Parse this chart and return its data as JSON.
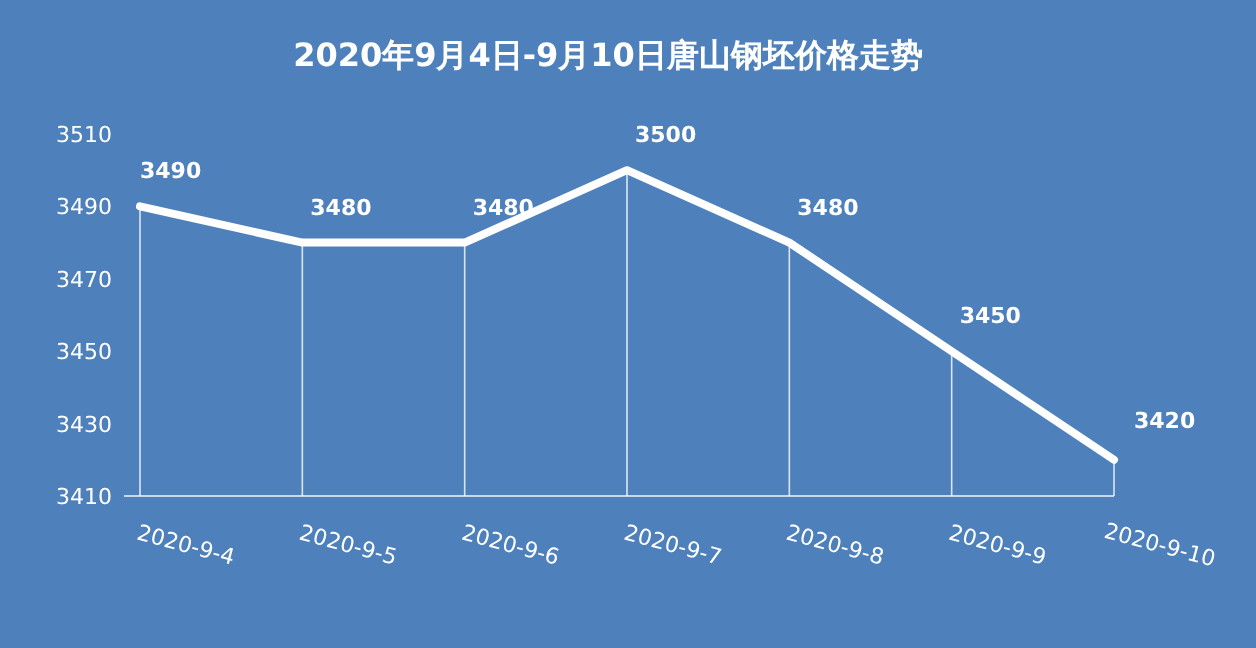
{
  "chart_data": {
    "type": "line",
    "title": "2020年9月4日-9月10日唐山钢坯价格走势",
    "categories": [
      "2020-9-4",
      "2020-9-5",
      "2020-9-6",
      "2020-9-7",
      "2020-9-8",
      "2020-9-9",
      "2020-9-10"
    ],
    "series": [
      {
        "color": "#ffffff",
        "values": [
          3490,
          3480,
          3480,
          3500,
          3480,
          3450,
          3420
        ]
      }
    ],
    "ylim": [
      3410,
      3510
    ],
    "yticks": [
      3410,
      3430,
      3450,
      3470,
      3490,
      3510
    ],
    "data_labels": true,
    "grid": "x",
    "marker": "none",
    "line_style": "solid"
  }
}
